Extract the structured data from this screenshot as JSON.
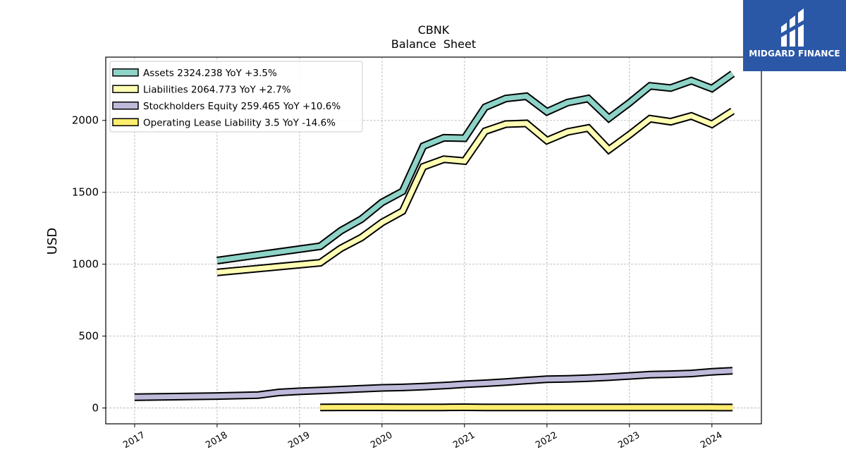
{
  "chart_data": {
    "type": "line",
    "title": "CBNK",
    "subtitle": "Balance  Sheet",
    "ylabel": "USD",
    "xlabel": "",
    "xlim": [
      2016.65,
      2024.6
    ],
    "ylim": [
      -110,
      2440
    ],
    "grid": true,
    "legend_position": "top-left",
    "x_ticks": [
      "2017",
      "2018",
      "2019",
      "2020",
      "2021",
      "2022",
      "2023",
      "2024"
    ],
    "y_ticks": [
      0,
      500,
      1000,
      1500,
      2000
    ],
    "series": [
      {
        "name": "Assets",
        "legend": "Assets  2324.238 YoY +3.5%",
        "color": "#8dd3c7",
        "x": [
          2018.0,
          2019.25,
          2019.5,
          2019.75,
          2020.0,
          2020.25,
          2020.5,
          2020.75,
          2021.0,
          2021.25,
          2021.5,
          2021.75,
          2022.0,
          2022.25,
          2022.5,
          2022.75,
          2023.0,
          2023.25,
          2023.5,
          2023.75,
          2024.0,
          2024.25
        ],
        "y": [
          1025,
          1125,
          1232,
          1313,
          1430,
          1507,
          1821,
          1879,
          1876,
          2092,
          2152,
          2168,
          2060,
          2124,
          2152,
          2015,
          2122,
          2240,
          2225,
          2276,
          2222,
          2324
        ]
      },
      {
        "name": "Liabilities",
        "legend": "Liabilities  2064.773 YoY +2.7%",
        "color": "#ffffb3",
        "x": [
          2018.0,
          2019.25,
          2019.5,
          2019.75,
          2020.0,
          2020.25,
          2020.5,
          2020.75,
          2021.0,
          2021.25,
          2021.5,
          2021.75,
          2022.0,
          2022.25,
          2022.5,
          2022.75,
          2023.0,
          2023.25,
          2023.5,
          2023.75,
          2024.0,
          2024.25
        ],
        "y": [
          943,
          1010,
          1110,
          1185,
          1290,
          1369,
          1678,
          1730,
          1717,
          1925,
          1974,
          1979,
          1860,
          1920,
          1947,
          1796,
          1900,
          2012,
          1991,
          2031,
          1973,
          2065
        ]
      },
      {
        "name": "Stockholders Equity",
        "legend": "Stockholders Equity  259.465 YoY +10.6%",
        "color": "#bebada",
        "x": [
          2017.0,
          2018.0,
          2018.5,
          2018.75,
          2019.0,
          2019.25,
          2019.5,
          2019.75,
          2020.0,
          2020.25,
          2020.5,
          2020.75,
          2021.0,
          2021.25,
          2021.5,
          2021.75,
          2022.0,
          2022.25,
          2022.5,
          2022.75,
          2023.0,
          2023.25,
          2023.5,
          2023.75,
          2024.0,
          2024.25
        ],
        "y": [
          75,
          83,
          90,
          108,
          116,
          122,
          128,
          134,
          140,
          143,
          149,
          156,
          165,
          172,
          181,
          191,
          200,
          203,
          208,
          214,
          223,
          232,
          235,
          240,
          252,
          259
        ]
      },
      {
        "name": "Operating Lease Liability",
        "legend": "Operating Lease Liability  3.5 YoY -14.6%",
        "color": "#ffed6f",
        "x": [
          2019.25,
          2019.5,
          2019.75,
          2020.0,
          2020.25,
          2020.5,
          2020.75,
          2021.0,
          2021.25,
          2021.5,
          2021.75,
          2022.0,
          2022.25,
          2022.5,
          2022.75,
          2023.0,
          2023.25,
          2023.5,
          2023.75,
          2024.0,
          2024.25
        ],
        "y": [
          4.5,
          4.6,
          4.7,
          4.6,
          4.3,
          4.2,
          4.1,
          5.0,
          4.3,
          4.1,
          4.0,
          4.0,
          3.9,
          4.0,
          3.9,
          3.8,
          4.2,
          4.1,
          4.0,
          3.7,
          3.5
        ]
      }
    ]
  },
  "logo": {
    "name": "MIDGARD FINANCE"
  }
}
